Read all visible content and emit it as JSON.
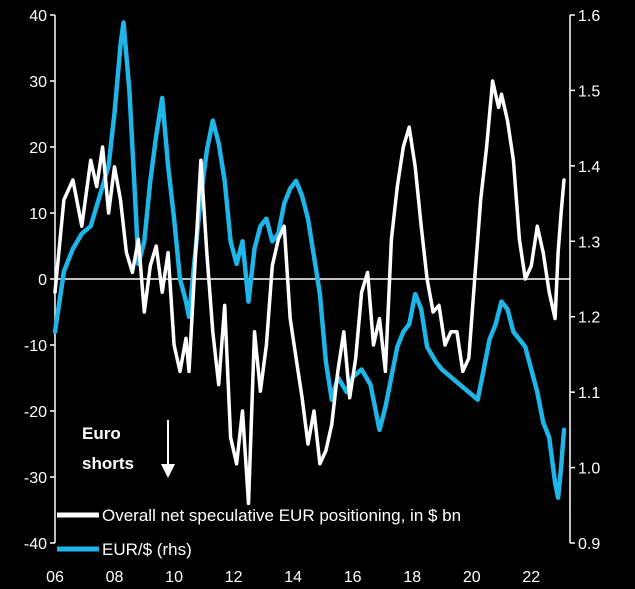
{
  "chart_data": {
    "type": "line",
    "title": "",
    "x_axis": {
      "range": [
        2006,
        2023.3
      ],
      "ticks": [
        6,
        8,
        10,
        12,
        14,
        16,
        18,
        20,
        22
      ],
      "tick_labels": [
        "06",
        "08",
        "10",
        "12",
        "14",
        "16",
        "18",
        "20",
        "22"
      ]
    },
    "y_left": {
      "range": [
        -40,
        40
      ],
      "ticks": [
        -40,
        -30,
        -20,
        -10,
        0,
        10,
        20,
        30,
        40
      ],
      "tick_labels": [
        "-40",
        "-30",
        "-20",
        "-10",
        "0",
        "10",
        "20",
        "30",
        "40"
      ]
    },
    "y_right": {
      "range": [
        0.9,
        1.6
      ],
      "ticks": [
        0.9,
        1.0,
        1.1,
        1.2,
        1.3,
        1.4,
        1.5,
        1.6
      ],
      "tick_labels": [
        "0.9",
        "1.0",
        "1.1",
        "1.2",
        "1.3",
        "1.4",
        "1.5",
        "1.6"
      ]
    },
    "grid": false,
    "zero_line": true,
    "legend": {
      "position": "bottom-left",
      "entries": [
        "Overall net speculative EUR positioning, in $ bn",
        "EUR/$ (rhs)"
      ]
    },
    "annotation": {
      "lines": [
        "Euro",
        "shorts"
      ],
      "arrow": "down"
    },
    "series": [
      {
        "name": "Overall net speculative EUR positioning, in $ bn",
        "axis": "left",
        "color": "#ffffff",
        "x": [
          2006.0,
          2006.3,
          2006.6,
          2006.9,
          2007.2,
          2007.4,
          2007.6,
          2007.8,
          2008.0,
          2008.2,
          2008.4,
          2008.6,
          2008.8,
          2009.0,
          2009.2,
          2009.4,
          2009.6,
          2009.8,
          2010.0,
          2010.2,
          2010.4,
          2010.5,
          2010.7,
          2010.9,
          2011.1,
          2011.3,
          2011.5,
          2011.7,
          2011.9,
          2012.1,
          2012.3,
          2012.5,
          2012.7,
          2012.9,
          2013.1,
          2013.3,
          2013.5,
          2013.7,
          2013.9,
          2014.1,
          2014.3,
          2014.5,
          2014.7,
          2014.9,
          2015.1,
          2015.3,
          2015.5,
          2015.7,
          2015.9,
          2016.1,
          2016.3,
          2016.5,
          2016.7,
          2016.9,
          2017.1,
          2017.3,
          2017.5,
          2017.7,
          2017.9,
          2018.1,
          2018.3,
          2018.5,
          2018.7,
          2018.9,
          2019.1,
          2019.3,
          2019.5,
          2019.7,
          2019.9,
          2020.1,
          2020.3,
          2020.5,
          2020.7,
          2020.9,
          2021.0,
          2021.2,
          2021.4,
          2021.6,
          2021.8,
          2022.0,
          2022.2,
          2022.4,
          2022.6,
          2022.8,
          2022.9,
          2023.0,
          2023.1
        ],
        "values": [
          -2,
          12,
          15,
          8,
          18,
          14,
          20,
          10,
          17,
          12,
          4,
          1,
          6,
          -5,
          2,
          5,
          -2,
          4,
          -10,
          -14,
          -9,
          -14,
          2,
          18,
          4,
          -8,
          -16,
          -4,
          -24,
          -28,
          -20,
          -34,
          -8,
          -17,
          -10,
          2,
          6,
          8,
          -6,
          -12,
          -18,
          -25,
          -20,
          -28,
          -26,
          -22,
          -14,
          -8,
          -18,
          -12,
          -2,
          1,
          -10,
          -6,
          -14,
          6,
          14,
          20,
          23,
          17,
          8,
          0,
          -5,
          -4,
          -10,
          -8,
          -8,
          -14,
          -12,
          0,
          12,
          20,
          30,
          26,
          28,
          24,
          18,
          6,
          0,
          2,
          8,
          4,
          -2,
          -6,
          4,
          10,
          15
        ]
      },
      {
        "name": "EUR/$ (rhs)",
        "axis": "right",
        "color": "#1fb5e8",
        "x": [
          2006.0,
          2006.3,
          2006.6,
          2006.9,
          2007.2,
          2007.5,
          2007.8,
          2008.0,
          2008.2,
          2008.3,
          2008.5,
          2008.7,
          2008.8,
          2009.0,
          2009.2,
          2009.4,
          2009.6,
          2009.8,
          2010.0,
          2010.2,
          2010.4,
          2010.5,
          2010.7,
          2010.9,
          2011.1,
          2011.3,
          2011.5,
          2011.7,
          2011.9,
          2012.1,
          2012.3,
          2012.5,
          2012.7,
          2012.9,
          2013.1,
          2013.3,
          2013.5,
          2013.7,
          2013.9,
          2014.1,
          2014.3,
          2014.5,
          2014.7,
          2014.9,
          2015.1,
          2015.3,
          2015.5,
          2015.8,
          2016.0,
          2016.3,
          2016.6,
          2016.9,
          2017.1,
          2017.3,
          2017.5,
          2017.7,
          2017.9,
          2018.1,
          2018.3,
          2018.5,
          2018.8,
          2019.0,
          2019.3,
          2019.6,
          2019.9,
          2020.2,
          2020.4,
          2020.6,
          2020.8,
          2021.0,
          2021.2,
          2021.4,
          2021.6,
          2021.8,
          2022.0,
          2022.2,
          2022.4,
          2022.6,
          2022.8,
          2022.9,
          2023.0,
          2023.1
        ],
        "values": [
          1.18,
          1.26,
          1.29,
          1.31,
          1.32,
          1.36,
          1.4,
          1.47,
          1.56,
          1.59,
          1.5,
          1.35,
          1.27,
          1.3,
          1.38,
          1.44,
          1.49,
          1.4,
          1.33,
          1.25,
          1.22,
          1.2,
          1.28,
          1.36,
          1.42,
          1.46,
          1.43,
          1.38,
          1.3,
          1.27,
          1.3,
          1.22,
          1.29,
          1.32,
          1.33,
          1.3,
          1.31,
          1.35,
          1.37,
          1.38,
          1.36,
          1.33,
          1.28,
          1.23,
          1.14,
          1.09,
          1.12,
          1.1,
          1.12,
          1.13,
          1.11,
          1.05,
          1.08,
          1.12,
          1.16,
          1.18,
          1.19,
          1.23,
          1.21,
          1.16,
          1.14,
          1.13,
          1.12,
          1.11,
          1.1,
          1.09,
          1.13,
          1.17,
          1.19,
          1.22,
          1.21,
          1.18,
          1.17,
          1.16,
          1.13,
          1.1,
          1.06,
          1.04,
          0.98,
          0.96,
          1.0,
          1.05
        ]
      }
    ]
  }
}
